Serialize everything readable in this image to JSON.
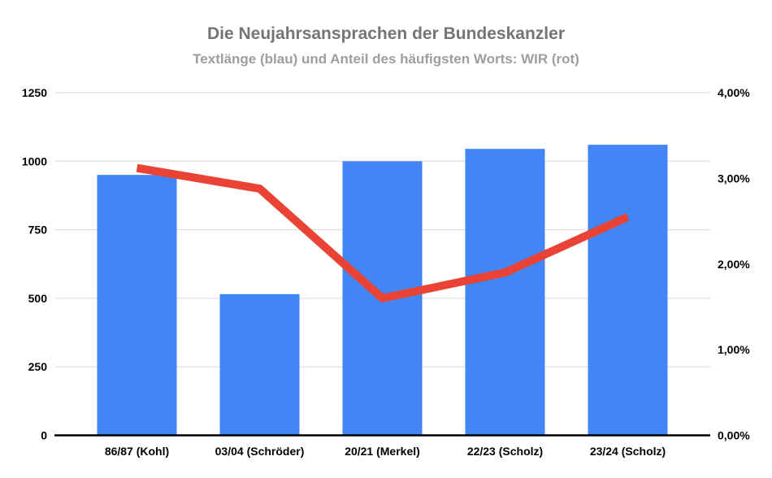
{
  "header": {
    "title": "Die Neujahrsansprachen der Bundeskanzler",
    "subtitle": "Textlänge (blau) und Anteil des häufigsten Worts: WIR (rot)"
  },
  "colors": {
    "bar_blue": "#4285F4",
    "line_red": "#EA4335",
    "gridline": "#dadada",
    "axis_line": "#000000",
    "title_gray": "#757575",
    "subtitle_gray": "#9e9e9e",
    "tick_label": "#000000",
    "background": "#ffffff"
  },
  "chart_data": {
    "type": "bar",
    "subtype": "combo-bar-line-dual-axis",
    "title": "Die Neujahrsansprachen der Bundeskanzler",
    "subtitle": "Textlänge (blau) und Anteil des häufigsten Worts: WIR (rot)",
    "categories": [
      "86/87 (Kohl)",
      "03/04 (Schröder)",
      "20/21 (Merkel)",
      "22/23 (Scholz)",
      "23/24 (Scholz)"
    ],
    "series": [
      {
        "name": "Textlänge",
        "type": "bar",
        "axis": "left",
        "color": "#4285F4",
        "values": [
          950,
          515,
          1000,
          1045,
          1060
        ]
      },
      {
        "name": "Anteil des häufigsten Worts: WIR",
        "type": "line",
        "axis": "right",
        "color": "#EA4335",
        "values": [
          3.12,
          2.88,
          1.6,
          1.9,
          2.55
        ]
      }
    ],
    "left_axis": {
      "min": 0,
      "max": 1250,
      "tick_labels": [
        "0",
        "250",
        "500",
        "750",
        "1000",
        "1250"
      ]
    },
    "right_axis": {
      "min": 0,
      "max": 4,
      "tick_labels": [
        "0,00%",
        "1,00%",
        "2,00%",
        "3,00%",
        "4,00%"
      ]
    },
    "grid": true,
    "legend": "none",
    "xlabel": "",
    "ylabel": ""
  }
}
